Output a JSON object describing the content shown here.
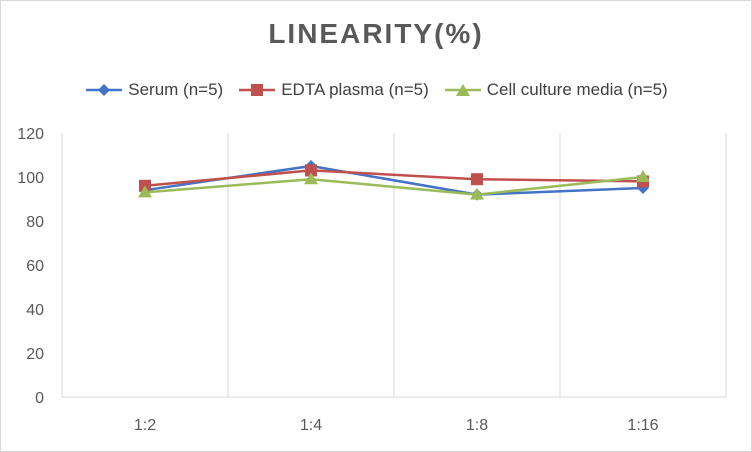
{
  "chart_data": {
    "type": "line",
    "title": "LINEARITY(%)",
    "xlabel": "",
    "ylabel": "",
    "categories": [
      "1:2",
      "1:4",
      "1:8",
      "1:16"
    ],
    "ylim": [
      0,
      120
    ],
    "yticks": [
      0,
      20,
      40,
      60,
      80,
      100,
      120
    ],
    "grid": "vertical",
    "legend_position": "top",
    "series": [
      {
        "name": "Serum (n=5)",
        "values": [
          94,
          105,
          92,
          95
        ],
        "color": "#4472C4",
        "marker": "diamond"
      },
      {
        "name": "EDTA plasma (n=5)",
        "values": [
          96,
          103,
          99,
          98
        ],
        "color": "#C0504D",
        "marker": "square"
      },
      {
        "name": "Cell culture media (n=5)",
        "values": [
          93,
          99,
          92,
          100
        ],
        "color": "#9BBB59",
        "marker": "triangle"
      }
    ]
  }
}
